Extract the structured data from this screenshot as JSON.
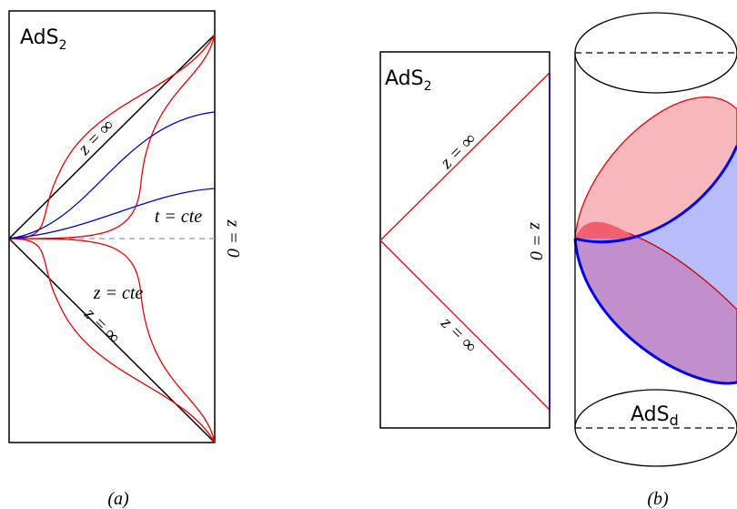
{
  "panel_a": {
    "label": {
      "main": "AdS",
      "sub": "2"
    },
    "annotations": {
      "z_inf_top": "z = ∞",
      "t_cte": "t = cte",
      "z_cte": "z = cte",
      "z_zero": "z = 0",
      "z_inf_bottom": "z = ∞"
    },
    "caption": "(a)"
  },
  "panel_b": {
    "label": {
      "main": "AdS",
      "sub": "2"
    },
    "annotations": {
      "z_inf_top": "z = ∞",
      "z_zero": "z = 0",
      "z_inf_bottom": "z = ∞"
    },
    "cylinder_label": {
      "main": "AdS",
      "sub": "d"
    },
    "caption": "(b)"
  }
}
